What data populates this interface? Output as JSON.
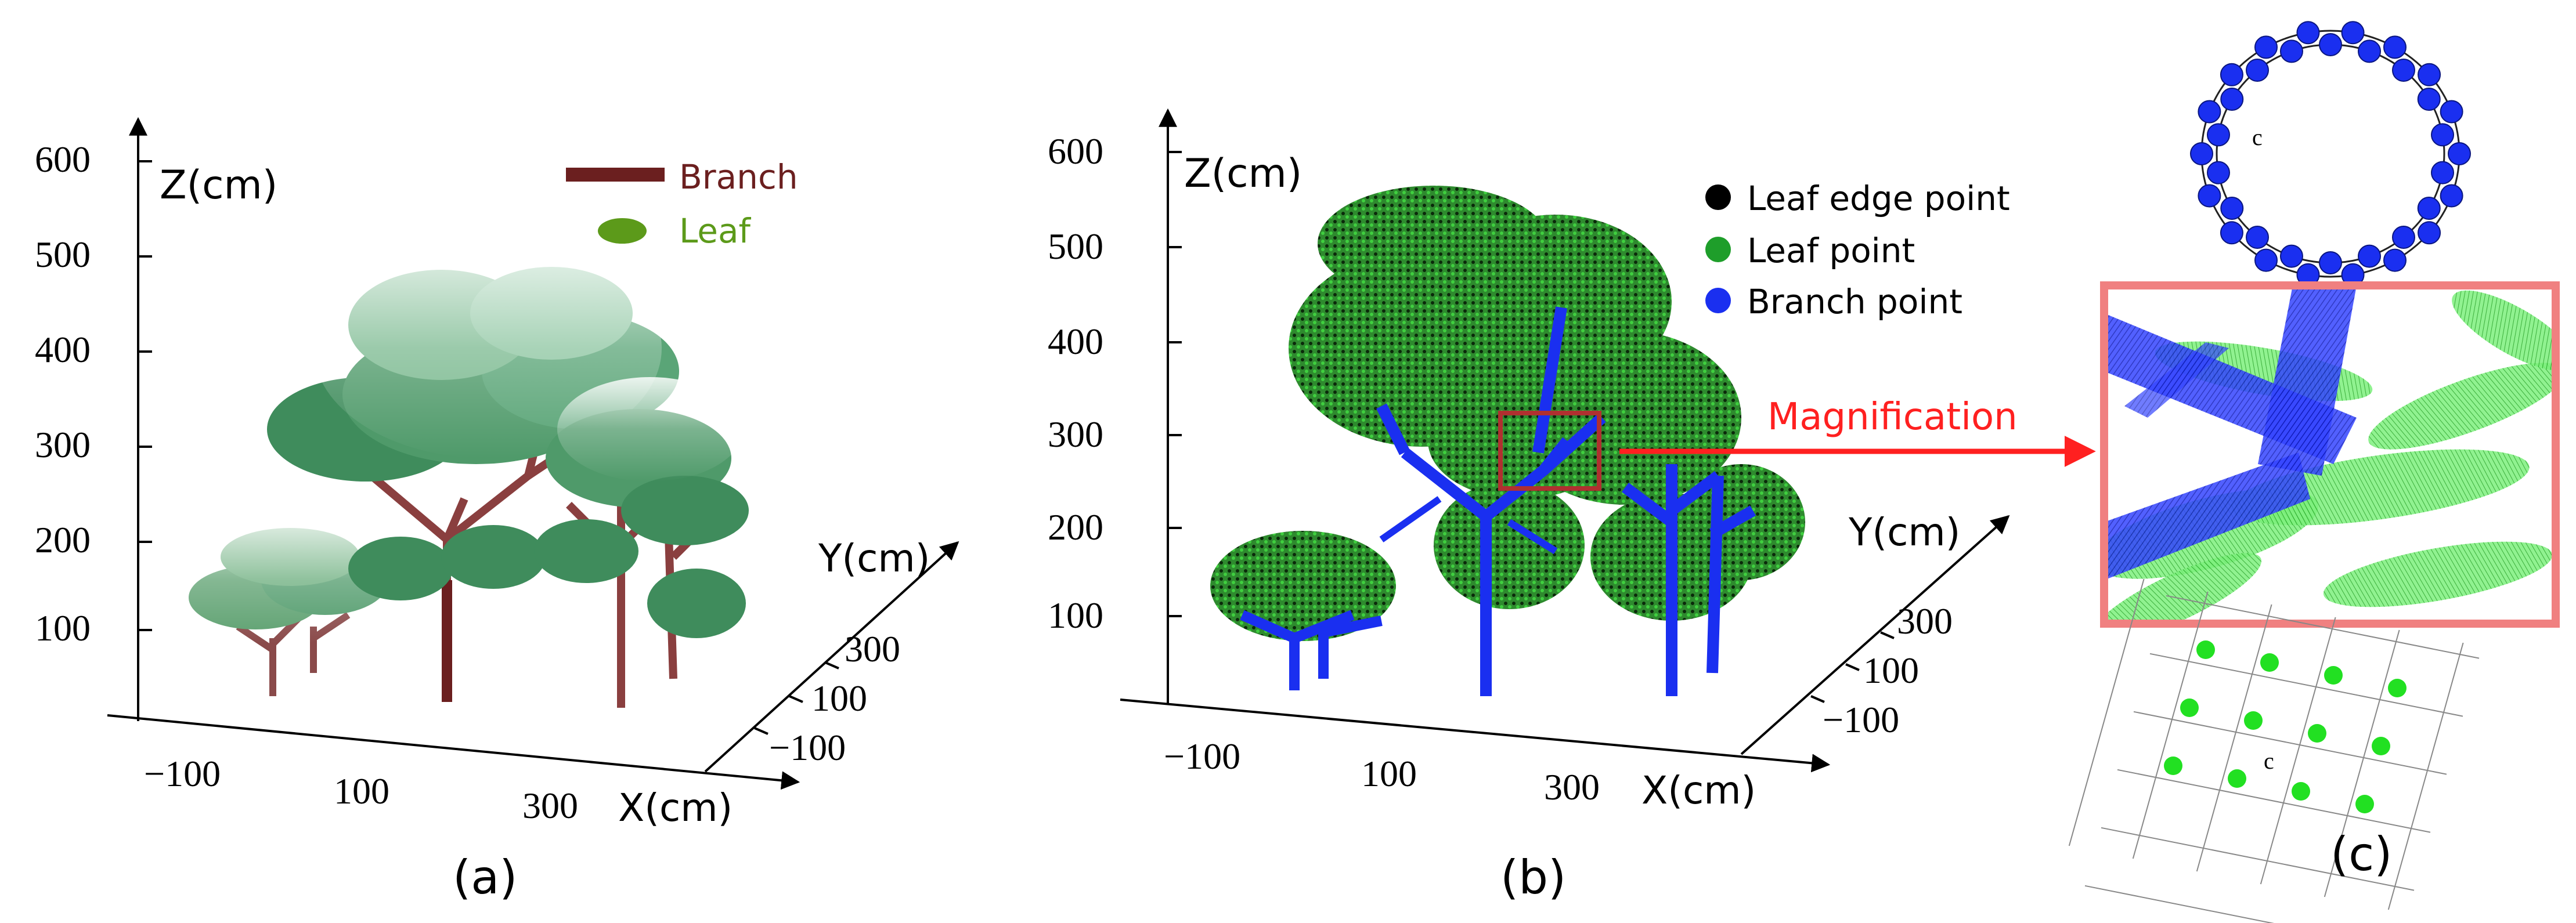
{
  "panels": {
    "a": {
      "caption": "(a)",
      "axes": {
        "z_label": "Z(cm)",
        "y_label": "Y(cm)",
        "x_label": "X(cm)",
        "z_ticks": [
          "600",
          "500",
          "400",
          "300",
          "200",
          "100"
        ],
        "x_ticks": [
          "−100",
          "100",
          "300"
        ],
        "y_ticks": [
          "300",
          "100",
          "−100"
        ]
      },
      "legend": [
        {
          "label": "Branch",
          "color": "#6b1f1f"
        },
        {
          "label": "Leaf",
          "color": "#5c9a1a"
        }
      ]
    },
    "b": {
      "caption": "(b)",
      "axes": {
        "z_label": "Z(cm)",
        "y_label": "Y(cm)",
        "x_label": "X(cm)",
        "z_ticks": [
          "600",
          "500",
          "400",
          "300",
          "200",
          "100"
        ],
        "x_ticks": [
          "−100",
          "100",
          "300"
        ],
        "y_ticks": [
          "300",
          "100",
          "−100"
        ]
      },
      "legend": [
        {
          "label": "Leaf edge point",
          "color": "#000000"
        },
        {
          "label": "Leaf point",
          "color": "#1e9e2a"
        },
        {
          "label": "Branch point",
          "color": "#1a2ff0"
        }
      ],
      "magnification_label": "Magnification"
    },
    "c": {
      "caption": "(c)",
      "center_label_top": "c",
      "center_label_bottom": "c"
    }
  },
  "colors": {
    "branch": "#7a3a3a",
    "leaf_canopy": "#4f9a6a",
    "branch_point": "#1a2ff0",
    "leaf_point": "#22e022",
    "magnification": "#ff2020",
    "mag_frame": "#f08080"
  }
}
